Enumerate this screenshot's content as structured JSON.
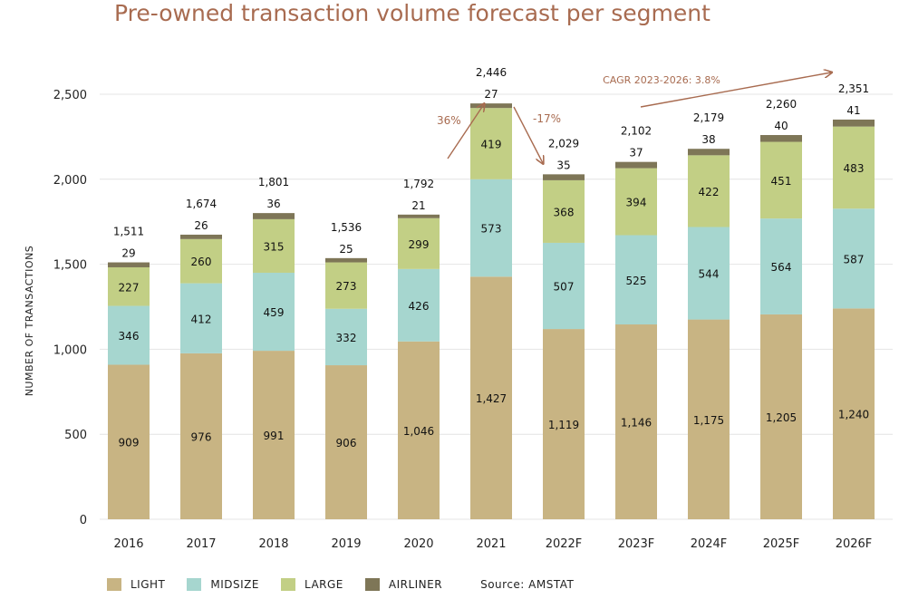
{
  "chart_data": {
    "type": "bar",
    "stacked": true,
    "title": "Pre-owned transaction volume forecast per segment",
    "ylabel": "NUMBER OF TRANSACTIONS",
    "xlabel": "",
    "ylim": [
      0,
      2500
    ],
    "yticks": [
      0,
      500,
      1000,
      1500,
      2000,
      2500
    ],
    "ytick_labels": [
      "0",
      "500",
      "1,000",
      "1,500",
      "2,000",
      "2,500"
    ],
    "grid": true,
    "legend_position": "bottom-left",
    "categories": [
      "2016",
      "2017",
      "2018",
      "2019",
      "2020",
      "2021",
      "2022F",
      "2023F",
      "2024F",
      "2025F",
      "2026F"
    ],
    "series": [
      {
        "name": "LIGHT",
        "color": "#c8b483",
        "values": [
          909,
          976,
          991,
          906,
          1046,
          1427,
          1119,
          1146,
          1175,
          1205,
          1240
        ],
        "labels": [
          "909",
          "976",
          "991",
          "906",
          "1,046",
          "1,427",
          "1,119",
          "1,146",
          "1,175",
          "1,205",
          "1,240"
        ]
      },
      {
        "name": "MIDSIZE",
        "color": "#a6d6cf",
        "values": [
          346,
          412,
          459,
          332,
          426,
          573,
          507,
          525,
          544,
          564,
          587
        ],
        "labels": [
          "346",
          "412",
          "459",
          "332",
          "426",
          "573",
          "507",
          "525",
          "544",
          "564",
          "587"
        ]
      },
      {
        "name": "LARGE",
        "color": "#c2cf85",
        "values": [
          227,
          260,
          315,
          273,
          299,
          419,
          368,
          394,
          422,
          451,
          483
        ],
        "labels": [
          "227",
          "260",
          "315",
          "273",
          "299",
          "419",
          "368",
          "394",
          "422",
          "451",
          "483"
        ]
      },
      {
        "name": "AIRLINER",
        "color": "#7e7657",
        "values": [
          29,
          26,
          36,
          25,
          21,
          27,
          35,
          37,
          38,
          40,
          41
        ],
        "labels": [
          "29",
          "26",
          "36",
          "25",
          "21",
          "27",
          "35",
          "37",
          "38",
          "40",
          "41"
        ]
      }
    ],
    "totals": [
      1511,
      1674,
      1801,
      1536,
      1792,
      2446,
      2029,
      2102,
      2179,
      2260,
      2351
    ],
    "total_labels": [
      "1,511",
      "1,674",
      "1,801",
      "1,536",
      "1,792",
      "2,446",
      "2,029",
      "2,102",
      "2,179",
      "2,260",
      "2,351"
    ],
    "annotations": [
      {
        "text": "36%",
        "from_category": "2020",
        "to_category": "2021"
      },
      {
        "text": "-17%",
        "from_category": "2021",
        "to_category": "2022F"
      },
      {
        "text": "CAGR 2023-2026: 3.8%",
        "from_category": "2023F",
        "to_category": "2026F"
      }
    ],
    "source": "Source: AMSTAT",
    "annotation_color": "#a86b50"
  }
}
